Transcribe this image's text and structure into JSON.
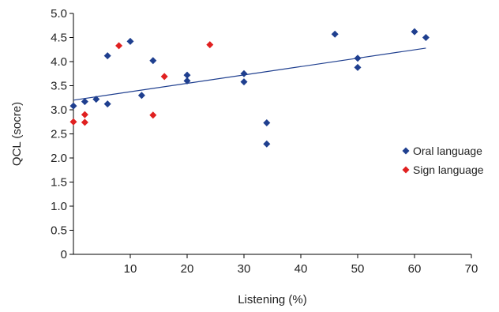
{
  "chart_data": {
    "type": "scatter",
    "xlabel": "Listening (%)",
    "ylabel": "QCL (socre)",
    "xlim": [
      0,
      70
    ],
    "ylim": [
      0,
      5.0
    ],
    "x_ticks": [
      "10",
      "20",
      "30",
      "40",
      "50",
      "60",
      "70"
    ],
    "y_ticks": [
      "0",
      "0.5",
      "1.0",
      "1.5",
      "2.0",
      "2.5",
      "3.0",
      "3.5",
      "4.0",
      "4.5",
      "5.0"
    ],
    "grid": false,
    "legend_position": "right",
    "series": [
      {
        "name": "Oral language",
        "color": "#1f3f8f",
        "marker": "diamond",
        "points": [
          {
            "x": 0,
            "y": 3.08
          },
          {
            "x": 2,
            "y": 3.17
          },
          {
            "x": 4,
            "y": 3.22
          },
          {
            "x": 6,
            "y": 3.12
          },
          {
            "x": 6,
            "y": 4.12
          },
          {
            "x": 10,
            "y": 4.42
          },
          {
            "x": 12,
            "y": 3.3
          },
          {
            "x": 14,
            "y": 4.02
          },
          {
            "x": 20,
            "y": 3.72
          },
          {
            "x": 20,
            "y": 3.6
          },
          {
            "x": 30,
            "y": 3.75
          },
          {
            "x": 30,
            "y": 3.58
          },
          {
            "x": 34,
            "y": 2.73
          },
          {
            "x": 34,
            "y": 2.29
          },
          {
            "x": 46,
            "y": 4.57
          },
          {
            "x": 50,
            "y": 4.07
          },
          {
            "x": 50,
            "y": 3.88
          },
          {
            "x": 60,
            "y": 4.62
          },
          {
            "x": 62,
            "y": 4.5
          }
        ]
      },
      {
        "name": "Sign language",
        "color": "#e02020",
        "marker": "diamond",
        "points": [
          {
            "x": 0,
            "y": 2.75
          },
          {
            "x": 2,
            "y": 2.9
          },
          {
            "x": 2,
            "y": 2.74
          },
          {
            "x": 8,
            "y": 4.33
          },
          {
            "x": 14,
            "y": 2.89
          },
          {
            "x": 16,
            "y": 3.69
          },
          {
            "x": 24,
            "y": 4.35
          }
        ]
      }
    ],
    "trendline": {
      "color": "#1f3f8f",
      "from": {
        "x": 0,
        "y": 3.2
      },
      "to": {
        "x": 62,
        "y": 4.28
      }
    }
  }
}
